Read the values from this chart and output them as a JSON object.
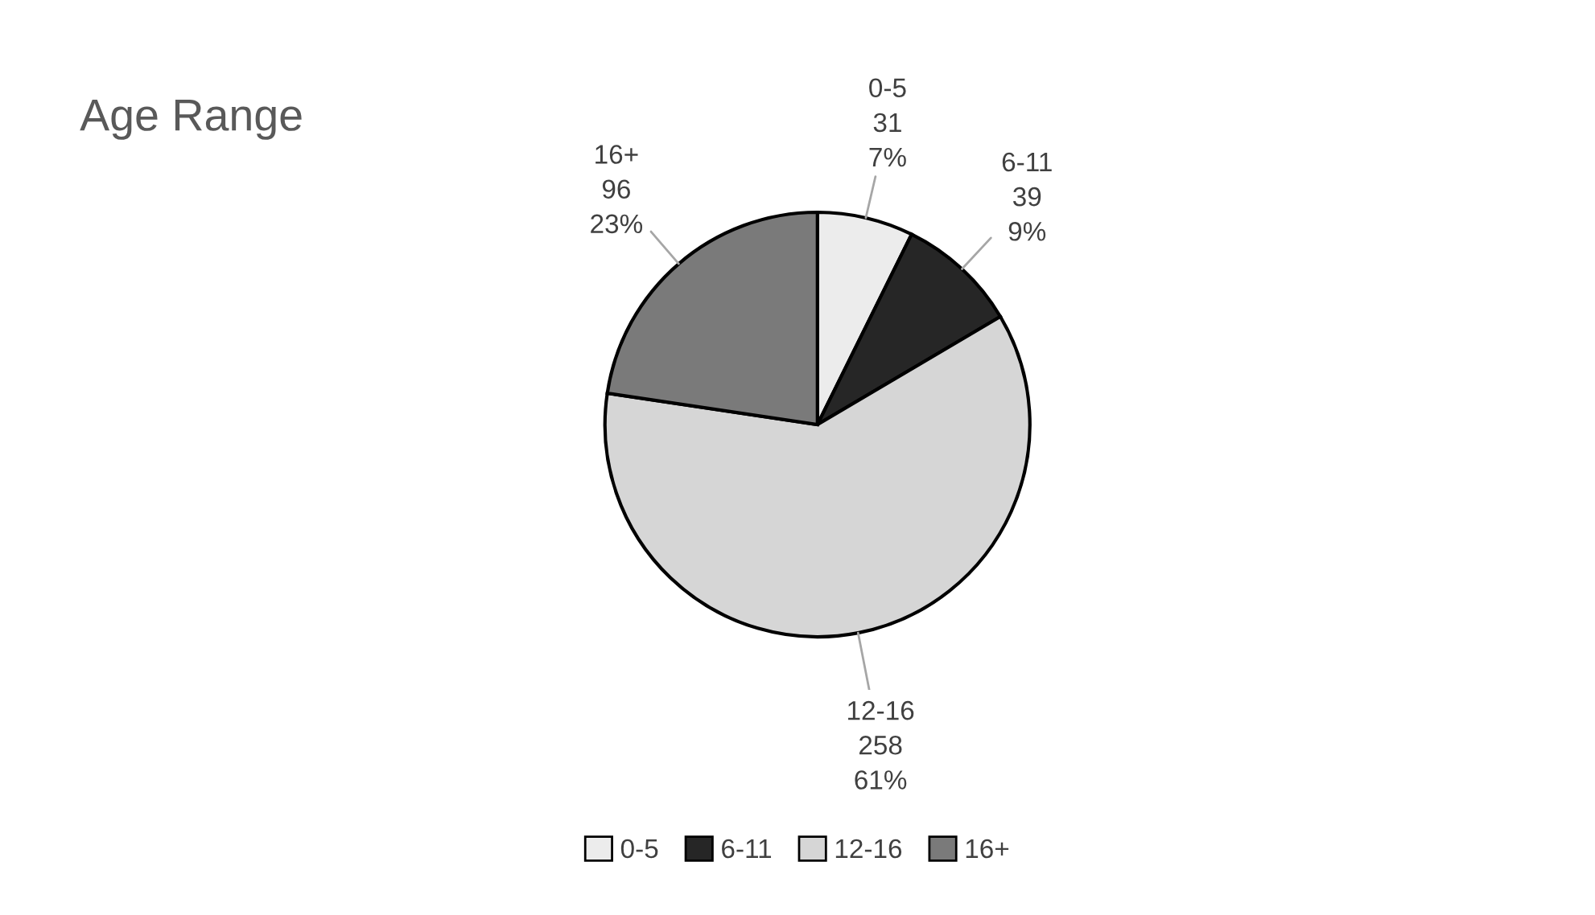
{
  "chart_data": {
    "type": "pie",
    "title": "Age Range",
    "categories": [
      "0-5",
      "6-11",
      "12-16",
      "16+"
    ],
    "values": [
      31,
      39,
      258,
      96
    ],
    "value_labels": [
      "31\n7%",
      "39\n9%",
      "258\n61%",
      "96\n23%"
    ],
    "colors": [
      "#ececec",
      "#262626",
      "#d6d6d6",
      "#7a7a7a"
    ],
    "legend": "bottom"
  }
}
